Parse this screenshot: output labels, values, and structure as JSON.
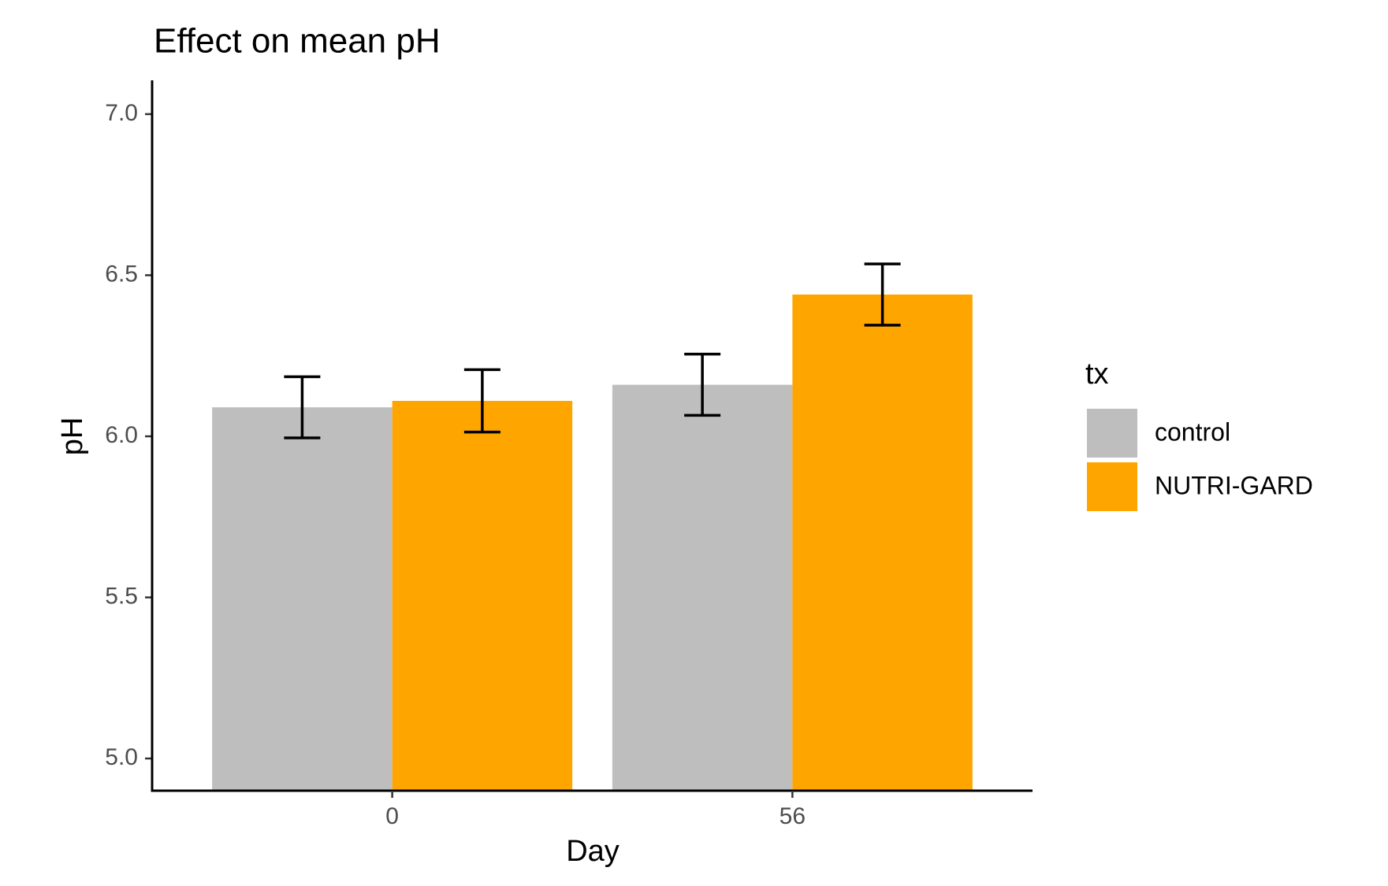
{
  "chart_data": {
    "type": "bar",
    "title": "Effect on mean pH",
    "x_label": "Day",
    "y_label": "pH",
    "categories": [
      "0",
      "56"
    ],
    "series": [
      {
        "name": "control",
        "color": "#bebebe",
        "values": [
          6.09,
          6.16
        ],
        "errors": [
          0.095,
          0.095
        ]
      },
      {
        "name": "NUTRI-GARD",
        "color": "#ffa500",
        "values": [
          6.11,
          6.44
        ],
        "errors": [
          0.097,
          0.095
        ]
      }
    ],
    "ylim": [
      4.9,
      7.1
    ],
    "yticks": [
      {
        "value": 5,
        "label": "5.0"
      },
      5.5,
      {
        "value": 6,
        "label": "6.0"
      },
      6.5,
      {
        "value": 7,
        "label": "7.0"
      }
    ],
    "legend_title": "tx",
    "legend_position": "right",
    "grid": false
  }
}
